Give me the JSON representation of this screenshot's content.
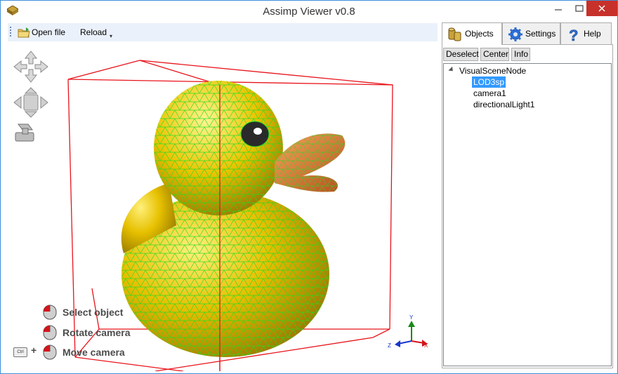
{
  "window": {
    "title": "Assimp Viewer v0.8",
    "controls": {
      "minimize": "—",
      "maximize": "☐",
      "close": "✕"
    }
  },
  "toolbar": {
    "open_label": "Open file",
    "reload_label": "Reload",
    "more_glyph": "▾"
  },
  "hints": [
    {
      "label": "Select object",
      "icon": "mouse-left-icon"
    },
    {
      "label": "Rotate camera",
      "icon": "mouse-left-icon"
    },
    {
      "label": "Move camera",
      "icon": "mouse-left-icon",
      "modifier": "Ctrl"
    }
  ],
  "hint_plus": "+",
  "axes": {
    "x": "X",
    "y": "Y",
    "z": "Z"
  },
  "tabs": [
    {
      "label": "Objects",
      "icon": "objects-icon",
      "active": true
    },
    {
      "label": "Settings",
      "icon": "gear-icon",
      "active": false
    },
    {
      "label": "Help",
      "icon": "help-icon",
      "active": false
    }
  ],
  "panel": {
    "buttons": {
      "deselect": "Deselect",
      "center": "Center",
      "info": "Info"
    },
    "tree": {
      "root": "VisualSceneNode",
      "children": [
        "LOD3sp",
        "camera1",
        "directionalLight1"
      ],
      "selected": "LOD3sp"
    }
  },
  "colors": {
    "accent": "#3399ff",
    "bounding_box": "#e8141b",
    "wireframe": "#22dd22",
    "model_fill": "#e6c000"
  }
}
